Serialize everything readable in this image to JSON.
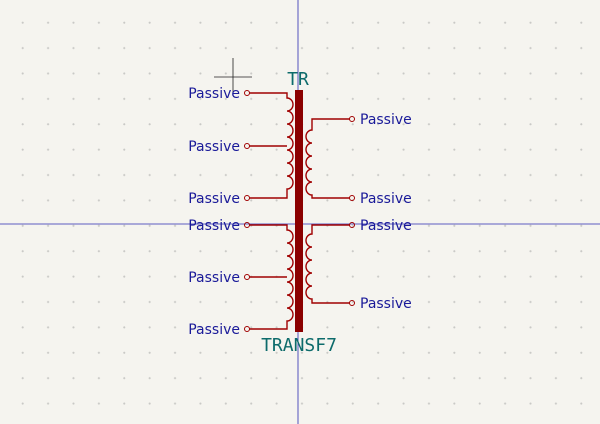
{
  "symbol": {
    "reference": "TR",
    "value": "TRANSF7",
    "body_color": "#8b0000",
    "pin_color": "#a00000",
    "label_color": "#1a1a99",
    "text_color": "#0d6b6b"
  },
  "pins": {
    "left": [
      "Passive",
      "Passive",
      "Passive",
      "Passive",
      "Passive",
      "Passive"
    ],
    "right": [
      "Passive",
      "Passive",
      "Passive",
      "Passive"
    ]
  }
}
